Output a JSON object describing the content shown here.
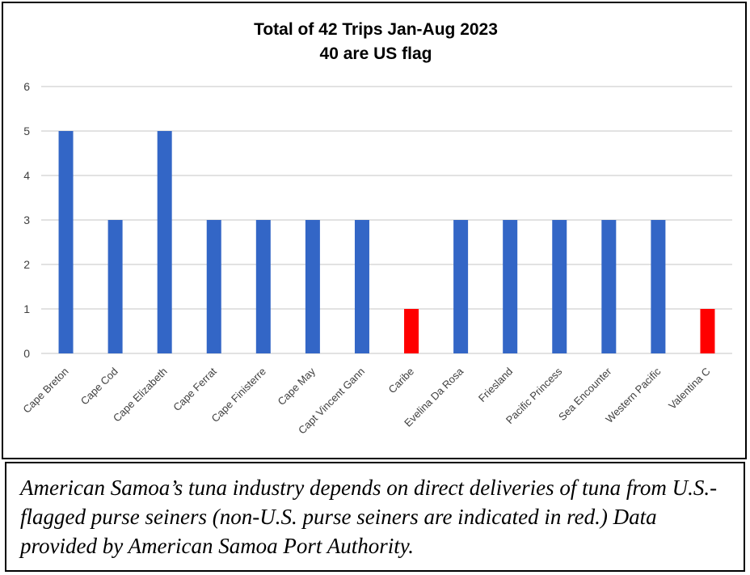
{
  "chart_data": {
    "type": "bar",
    "title": "Total of 42 Trips Jan-Aug 2023",
    "subtitle": "40 are US flag",
    "xlabel": "",
    "ylabel": "",
    "ylim": [
      0,
      6
    ],
    "yticks": [
      0,
      1,
      2,
      3,
      4,
      5,
      6
    ],
    "grid": true,
    "categories": [
      "Cape Breton",
      "Cape Cod",
      "Cape Elizabeth",
      "Cape Ferrat",
      "Cape Finisterre",
      "Cape May",
      "Capt Vincent Gann",
      "Caribe",
      "Evelina Da Rosa",
      "Friesland",
      "Pacific Princess",
      "Sea Encounter",
      "Western Pacific",
      "Valentina C"
    ],
    "values": [
      5,
      3,
      5,
      3,
      3,
      3,
      3,
      1,
      3,
      3,
      3,
      3,
      3,
      1
    ],
    "flags": [
      "US",
      "US",
      "US",
      "US",
      "US",
      "US",
      "US",
      "non-US",
      "US",
      "US",
      "US",
      "US",
      "US",
      "non-US"
    ],
    "colors": {
      "US": "#3366c6",
      "non-US": "#ff0000",
      "grid": "#d9d9d9",
      "tick_text": "#404040"
    }
  },
  "caption": "American Samoa’s tuna industry depends on direct deliveries of tuna from U.S.-flagged purse seiners (non-U.S. purse seiners are indicated in red.) Data provided by American Samoa Port Authority."
}
